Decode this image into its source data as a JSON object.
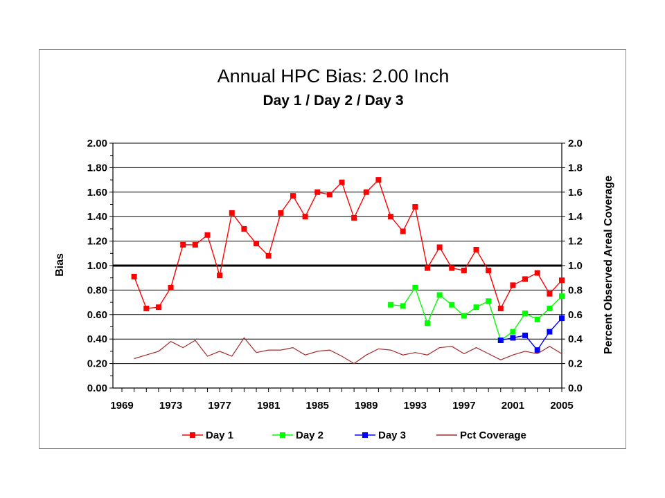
{
  "chart_data": {
    "type": "line",
    "title": "Annual HPC Bias:  2.00 Inch",
    "subtitle": "Day 1 / Day 2 / Day 3",
    "ylabel": "Bias",
    "y2label": "Percent Observed Areal Coverage",
    "ylim": [
      0,
      2
    ],
    "y2lim": [
      0,
      2
    ],
    "xlim": [
      1969,
      2005
    ],
    "xtick_labels": [
      "1969",
      "1973",
      "1977",
      "1981",
      "1985",
      "1989",
      "1993",
      "1997",
      "2001",
      "2005"
    ],
    "ytick_labels": [
      "0.00",
      "0.20",
      "0.40",
      "0.60",
      "0.80",
      "1.00",
      "1.20",
      "1.40",
      "1.60",
      "1.80",
      "2.00"
    ],
    "y2tick_labels": [
      "0.0",
      "0.2",
      "0.4",
      "0.6",
      "0.8",
      "1.0",
      "1.2",
      "1.4",
      "1.6",
      "1.8",
      "2.0"
    ],
    "reference_line": 1.0,
    "grid": "horizontal",
    "legend_position": "bottom",
    "series": [
      {
        "name": "Day 1",
        "color": "#ff0000",
        "marker": "square",
        "x": [
          1970,
          1971,
          1972,
          1973,
          1974,
          1975,
          1976,
          1977,
          1978,
          1979,
          1980,
          1981,
          1982,
          1983,
          1984,
          1985,
          1986,
          1987,
          1988,
          1989,
          1990,
          1991,
          1992,
          1993,
          1994,
          1995,
          1996,
          1997,
          1998,
          1999,
          2000,
          2001,
          2002,
          2003,
          2004,
          2005
        ],
        "values": [
          0.91,
          0.65,
          0.66,
          0.82,
          1.17,
          1.17,
          1.25,
          0.92,
          1.43,
          1.3,
          1.18,
          1.08,
          1.43,
          1.57,
          1.4,
          1.6,
          1.58,
          1.68,
          1.39,
          1.6,
          1.7,
          1.4,
          1.28,
          1.48,
          0.98,
          1.15,
          0.98,
          0.96,
          1.13,
          0.96,
          0.65,
          0.84,
          0.89,
          0.94,
          0.77,
          0.88
        ]
      },
      {
        "name": "Day 2",
        "color": "#00ff00",
        "marker": "square",
        "x": [
          1991,
          1992,
          1993,
          1994,
          1995,
          1996,
          1997,
          1998,
          1999,
          2000,
          2001,
          2002,
          2003,
          2004,
          2005
        ],
        "values": [
          0.68,
          0.67,
          0.82,
          0.53,
          0.76,
          0.68,
          0.59,
          0.66,
          0.71,
          0.39,
          0.46,
          0.61,
          0.56,
          0.65,
          0.75
        ]
      },
      {
        "name": "Day 3",
        "color": "#0000ff",
        "marker": "square",
        "x": [
          2000,
          2001,
          2002,
          2003,
          2004,
          2005
        ],
        "values": [
          0.39,
          0.41,
          0.43,
          0.31,
          0.46,
          0.57
        ]
      },
      {
        "name": "Pct Coverage",
        "color": "#a52a2a",
        "marker": "none",
        "axis": "right",
        "x": [
          1970,
          1971,
          1972,
          1973,
          1974,
          1975,
          1976,
          1977,
          1978,
          1979,
          1980,
          1981,
          1982,
          1983,
          1984,
          1985,
          1986,
          1987,
          1988,
          1989,
          1990,
          1991,
          1992,
          1993,
          1994,
          1995,
          1996,
          1997,
          1998,
          1999,
          2000,
          2001,
          2002,
          2003,
          2004,
          2005
        ],
        "values": [
          0.24,
          0.27,
          0.3,
          0.38,
          0.33,
          0.39,
          0.26,
          0.3,
          0.26,
          0.41,
          0.29,
          0.31,
          0.31,
          0.33,
          0.27,
          0.3,
          0.31,
          0.26,
          0.2,
          0.27,
          0.32,
          0.31,
          0.27,
          0.29,
          0.27,
          0.33,
          0.34,
          0.28,
          0.33,
          0.28,
          0.23,
          0.27,
          0.3,
          0.28,
          0.34,
          0.28
        ]
      }
    ]
  }
}
